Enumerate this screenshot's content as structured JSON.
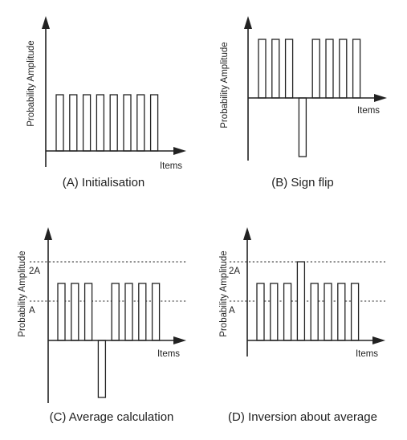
{
  "chart_data": [
    {
      "type": "bar",
      "ylabel": "Probability Amplitude",
      "xlabel": "Items",
      "caption": "(A)  Initialisation",
      "values": [
        1,
        1,
        1,
        1,
        1,
        1,
        1,
        1
      ],
      "reference_lines": []
    },
    {
      "type": "bar",
      "ylabel": "Probability Amplitude",
      "xlabel": "Items",
      "caption": "(B)  Sign flip",
      "values": [
        1,
        1,
        1,
        -1,
        1,
        1,
        1,
        1
      ],
      "reference_lines": []
    },
    {
      "type": "bar",
      "ylabel": "Probability Amplitude",
      "xlabel": "Items",
      "caption": "(C) Average calculation",
      "values": [
        1,
        1,
        1,
        -1,
        1,
        1,
        1,
        1
      ],
      "reference_lines": [
        {
          "label": "2A",
          "value": 1.38
        },
        {
          "label": "A",
          "value": 0.69
        }
      ]
    },
    {
      "type": "bar",
      "ylabel": "Probability Amplitude",
      "xlabel": "Items",
      "caption": "(D)  Inversion about average",
      "values": [
        1,
        1,
        1,
        1.38,
        1,
        1,
        1,
        1
      ],
      "reference_lines": [
        {
          "label": "2A",
          "value": 1.38
        },
        {
          "label": "A",
          "value": 0.69
        }
      ]
    }
  ]
}
